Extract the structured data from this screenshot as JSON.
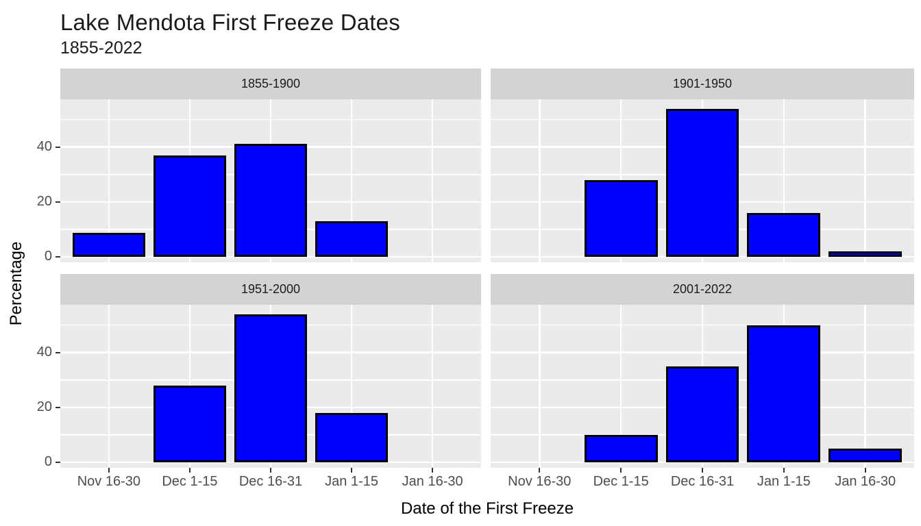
{
  "title": "Lake Mendota First Freeze Dates",
  "subtitle": "1855-2022",
  "chart_data": {
    "type": "bar",
    "facet_layout": "2x2",
    "categories": [
      "Nov 16-30",
      "Dec 1-15",
      "Dec 16-31",
      "Jan 1-15",
      "Jan 16-30"
    ],
    "series": [
      {
        "name": "1855-1900",
        "values": [
          8.7,
          37,
          41.3,
          13,
          0
        ]
      },
      {
        "name": "1901-1950",
        "values": [
          0,
          28,
          54,
          16,
          2
        ]
      },
      {
        "name": "1951-2000",
        "values": [
          0,
          28,
          54,
          18,
          0
        ]
      },
      {
        "name": "2001-2022",
        "values": [
          0,
          10,
          35,
          50,
          5
        ]
      }
    ],
    "xlabel": "Date of the First Freeze",
    "ylabel": "Percentage",
    "y_ticks": [
      0,
      20,
      40
    ],
    "y_minor_gridlines": [
      10,
      30,
      50
    ],
    "ylim": [
      -2,
      57.4
    ],
    "grid": "on",
    "legend": "none",
    "colors": {
      "bar_fill": "#0000FF",
      "bar_stroke": "#000000",
      "panel_bg": "#EBEBEB",
      "strip_bg": "#D3D3D3",
      "gridline": "#FFFFFF",
      "axis_text": "#4D4D4D",
      "title_text": "#1A1A1A"
    }
  }
}
